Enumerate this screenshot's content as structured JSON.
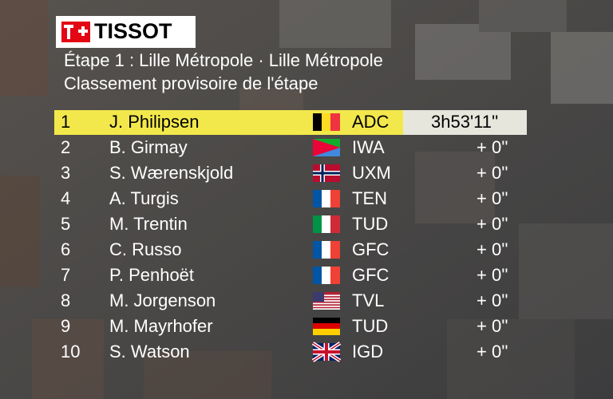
{
  "logo": "TISSOT",
  "header": {
    "stage": "Étape 1 : Lille Métropole · Lille Métropole",
    "subtitle": "Classement provisoire de l'étape"
  },
  "table": {
    "rows": [
      [
        1,
        "J. Philipsen",
        "ADC",
        "3h53'11''"
      ],
      [
        2,
        "B. Girmay",
        "IWA",
        "+ 0''"
      ],
      [
        3,
        "S. Wærenskjold",
        "UXM",
        "+ 0''"
      ],
      [
        4,
        "A. Turgis",
        "TEN",
        "+ 0''"
      ],
      [
        5,
        "M. Trentin",
        "TUD",
        "+ 0''"
      ],
      [
        6,
        "C. Russo",
        "GFC",
        "+ 0''"
      ],
      [
        7,
        "P. Penhoët",
        "GFC",
        "+ 0''"
      ],
      [
        8,
        "M. Jorgenson",
        "TVL",
        "+ 0''"
      ],
      [
        9,
        "M. Mayrhofer",
        "TUD",
        "+ 0''"
      ],
      [
        10,
        "S. Watson",
        "IGD",
        "+ 0''"
      ]
    ]
  }
}
